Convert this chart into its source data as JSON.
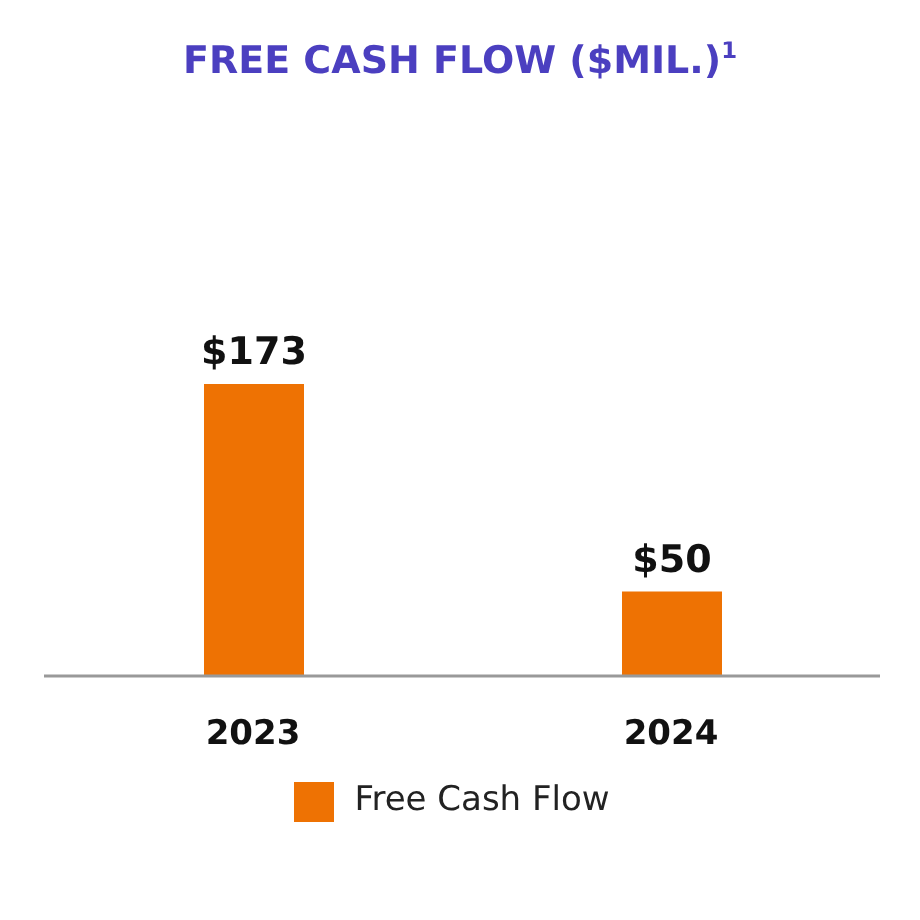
{
  "chart_data": {
    "type": "bar",
    "title": "FREE CASH FLOW ($MIL.)$^{1}$",
    "categories": [
      "2023",
      "2024"
    ],
    "series": [
      {
        "name": "Free Cash Flow",
        "color": "#ee7203",
        "values": [
          173,
          50
        ],
        "value_labels": [
          "$173",
          "$50"
        ]
      }
    ],
    "legend": "bottom"
  }
}
